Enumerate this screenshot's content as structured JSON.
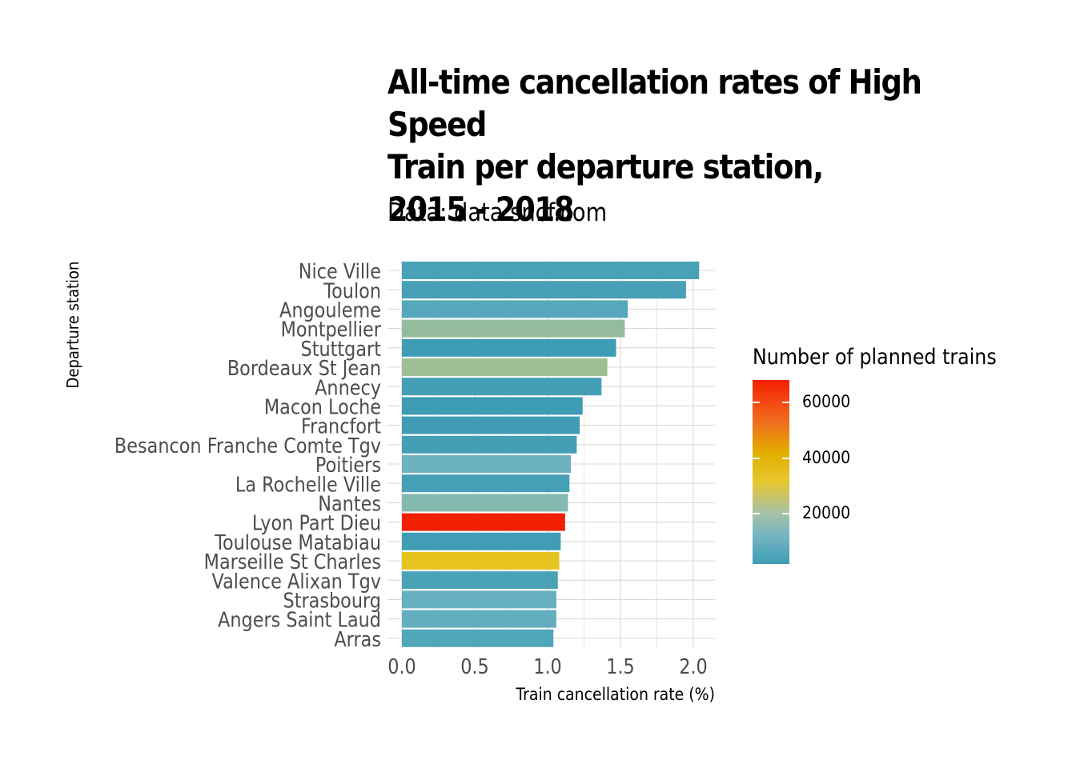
{
  "title": "All-time cancellation rates of High Speed\nTrain per departure station,\n2015 - 2018",
  "subtitle": "Data: data.sncf.com",
  "chart_data": {
    "type": "bar",
    "orientation": "horizontal",
    "xlabel": "Train cancellation rate (%)",
    "ylabel": "Departure station",
    "xlim": [
      0,
      2.1
    ],
    "xticks": [
      "0.0",
      "0.5",
      "1.0",
      "1.5",
      "2.0"
    ],
    "xtick_values": [
      0,
      0.5,
      1.0,
      1.5,
      2.0
    ],
    "grid": true,
    "legend_placement": "right",
    "categories": [
      "Nice Ville",
      "Toulon",
      "Angouleme",
      "Montpellier",
      "Stuttgart",
      "Bordeaux St Jean",
      "Annecy",
      "Macon Loche",
      "Francfort",
      "Besancon Franche Comte Tgv",
      "Poitiers",
      "La Rochelle Ville",
      "Nantes",
      "Lyon Part Dieu",
      "Toulouse Matabiau",
      "Marseille St Charles",
      "Valence Alixan Tgv",
      "Strasbourg",
      "Angers Saint Laud",
      "Arras"
    ],
    "values": [
      2.04,
      1.95,
      1.55,
      1.53,
      1.47,
      1.41,
      1.37,
      1.24,
      1.22,
      1.2,
      1.16,
      1.15,
      1.14,
      1.12,
      1.09,
      1.08,
      1.07,
      1.06,
      1.06,
      1.04
    ],
    "colors": [
      "#48a1b6",
      "#47a0b6",
      "#55a8bb",
      "#94bc9c",
      "#3e9cb5",
      "#9ebf96",
      "#439fb6",
      "#3f9cb5",
      "#409cb5",
      "#439eb6",
      "#6cb2c0",
      "#45a0b6",
      "#84b9af",
      "#f21f00",
      "#419db5",
      "#e6c31f",
      "#4aa2b7",
      "#66b0c0",
      "#62aebf",
      "#52a6ba"
    ],
    "fill_legend": {
      "title": "Number of planned trains",
      "ticks": [
        "20000",
        "40000",
        "60000"
      ],
      "tick_values": [
        20000,
        40000,
        60000
      ],
      "range": [
        2000,
        68000
      ],
      "low_color": "#3d9db5",
      "mid_color": "#e7c62d",
      "high_color": "#f21f00"
    }
  }
}
